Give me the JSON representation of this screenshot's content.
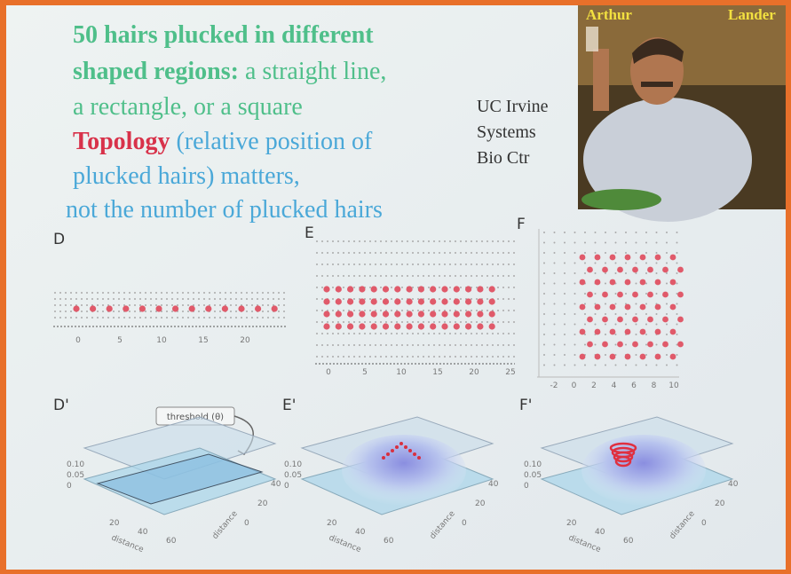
{
  "heading": {
    "line1": "50 hairs plucked in different",
    "line2_bold": "shaped regions:",
    "line2_rest": " a straight line,",
    "line3": "a rectangle, or a square",
    "line4_bold": "Topology",
    "line4_rest": " (relative position of",
    "line5": "plucked hairs) matters,",
    "line6": "not the number of plucked hairs"
  },
  "affiliation": [
    "UC Irvine",
    "Systems",
    "Bio Ctr"
  ],
  "photo_caption": [
    "Arthur",
    "Lander"
  ],
  "panels": [
    {
      "label": "D",
      "xticks": [
        "0",
        "5",
        "10",
        "15",
        "20"
      ]
    },
    {
      "label": "E",
      "xticks": [
        "0",
        "5",
        "10",
        "15",
        "20",
        "25"
      ]
    },
    {
      "label": "F",
      "xticks": [
        "-2",
        "0",
        "2",
        "4",
        "6",
        "8",
        "10"
      ]
    }
  ],
  "surface_panels": [
    {
      "label": "D'",
      "zticks": [
        "0.10",
        "0.05",
        "0"
      ],
      "xticks": [
        "20",
        "40",
        "60"
      ],
      "yticks": [
        "0",
        "20",
        "40"
      ],
      "xlabel": "distance",
      "ylabel": "distance"
    },
    {
      "label": "E'",
      "zticks": [
        "0.10",
        "0.05",
        "0"
      ],
      "xticks": [
        "20",
        "40",
        "60"
      ],
      "yticks": [
        "0",
        "20",
        "40"
      ],
      "xlabel": "distance",
      "ylabel": "distance"
    },
    {
      "label": "F'",
      "zticks": [
        "0.10",
        "0.05",
        "0"
      ],
      "xticks": [
        "20",
        "40",
        "60"
      ],
      "yticks": [
        "0",
        "20",
        "40"
      ],
      "xlabel": "distance",
      "ylabel": "distance"
    }
  ],
  "threshold_label": "threshold (θ)"
}
